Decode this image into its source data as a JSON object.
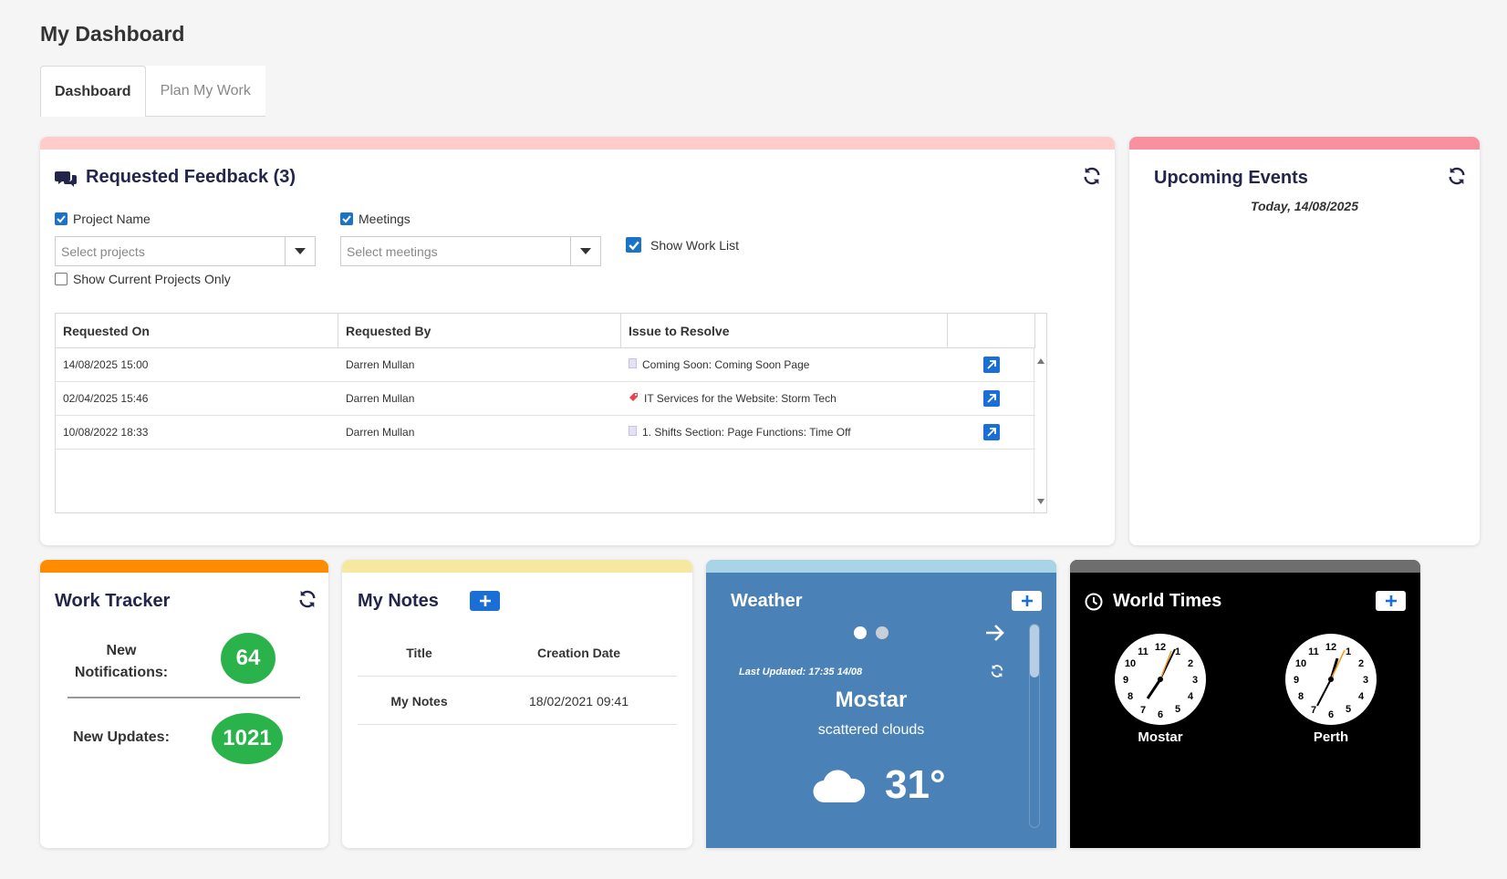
{
  "page_title": "My Dashboard",
  "tabs": [
    {
      "label": "Dashboard",
      "active": true
    },
    {
      "label": "Plan My Work",
      "active": false
    }
  ],
  "feedback": {
    "title": "Requested Feedback (3)",
    "accent": "#ffcccc",
    "filters": {
      "project_name_label": "Project Name",
      "project_placeholder": "Select projects",
      "meetings_label": "Meetings",
      "meetings_placeholder": "Select meetings",
      "show_work_list_label": "Show Work List",
      "current_projects_label": "Show Current Projects Only"
    },
    "columns": [
      "Requested On",
      "Requested By",
      "Issue to Resolve"
    ],
    "rows": [
      {
        "requested_on": "14/08/2025 15:00",
        "requested_by": "Darren Mullan",
        "issue": "Coming Soon: Coming Soon Page",
        "issue_icon": "page-icon"
      },
      {
        "requested_on": "02/04/2025 15:46",
        "requested_by": "Darren Mullan",
        "issue": "IT Services for the Website: Storm Tech",
        "issue_icon": "tag-icon"
      },
      {
        "requested_on": "10/08/2022 18:33",
        "requested_by": "Darren Mullan",
        "issue": "1. Shifts Section: Page Functions: Time Off",
        "issue_icon": "page-icon"
      }
    ]
  },
  "events": {
    "title": "Upcoming Events",
    "date": "Today, 14/08/2025",
    "accent": "#f7919f"
  },
  "work_tracker": {
    "title": "Work Tracker",
    "accent": "#ff8c00",
    "notifications_label_1": "New",
    "notifications_label_2": "Notifications:",
    "notifications_count": "64",
    "updates_label": "New Updates:",
    "updates_count": "1021"
  },
  "notes": {
    "title": "My Notes",
    "accent": "#f6e7a1",
    "columns": [
      "Title",
      "Creation Date"
    ],
    "rows": [
      {
        "title": "My Notes",
        "date": "18/02/2021 09:41"
      }
    ]
  },
  "weather": {
    "title": "Weather",
    "accent": "#a9d3e6",
    "background": "#4a82b8",
    "updated": "Last Updated: 17:35 14/08",
    "city": "Mostar",
    "condition": "scattered clouds",
    "temperature": "31°"
  },
  "world_times": {
    "title": "World Times",
    "accent": "#6e6e6e",
    "clocks": [
      {
        "city": "Mostar"
      },
      {
        "city": "Perth"
      }
    ]
  }
}
